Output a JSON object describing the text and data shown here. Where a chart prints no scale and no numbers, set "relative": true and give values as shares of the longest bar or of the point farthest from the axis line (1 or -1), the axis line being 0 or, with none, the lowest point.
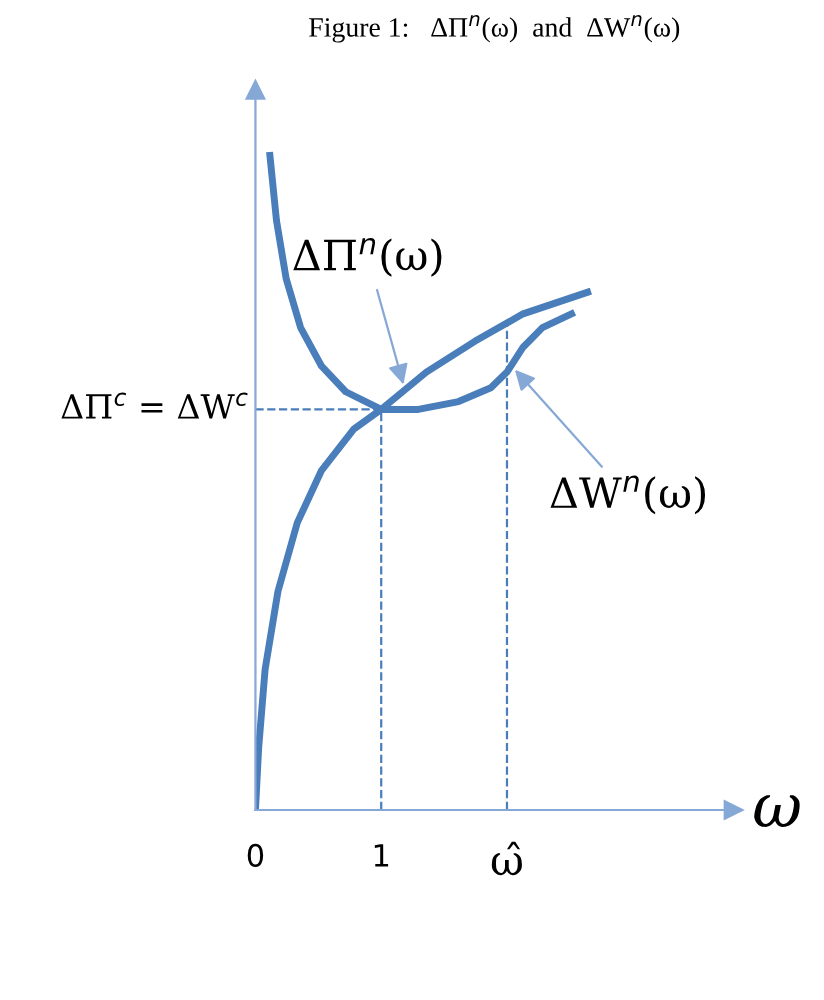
{
  "chart_data": {
    "type": "line",
    "title": "Figure 1:   ΔΠ$^{n}$(ω)  and  ΔW$^{n}$(ω)",
    "xlabel": "ω",
    "relative": true,
    "x": [
      0,
      0.026,
      0.077,
      0.179,
      0.333,
      0.526,
      0.782,
      1.0,
      1.359,
      1.744,
      2.128,
      2.641
    ],
    "xlim": [
      0,
      3.8
    ],
    "xticks": [
      0,
      1,
      {
        "value": 2.0,
        "label": "ω̂"
      }
    ],
    "series": [
      {
        "name": "ΔΠ$^{n}$(ω)",
        "color": "#4a7ebb",
        "values": [
          0,
          0.096,
          0.215,
          0.334,
          0.439,
          0.519,
          0.582,
          0.612,
          0.669,
          0.716,
          0.758,
          0.791
        ]
      },
      {
        "name": "ΔW$^{n}$(ω)",
        "color": "#4a7ebb",
        "x": [
          0.115,
          0.167,
          0.244,
          0.359,
          0.526,
          0.718,
          1.0,
          1.295,
          1.615,
          1.872,
          2.0,
          2.128,
          2.282,
          2.513
        ],
        "values": [
          1.0,
          0.901,
          0.812,
          0.737,
          0.678,
          0.639,
          0.612,
          0.612,
          0.624,
          0.645,
          0.669,
          0.707,
          0.737,
          0.758
        ]
      }
    ],
    "ref_lines": [
      {
        "axis": "x",
        "value": 1,
        "line_style": "dashed",
        "color": "#4a7ebb"
      },
      {
        "axis": "x",
        "value": 2.0,
        "line_style": "dashed",
        "color": "#4a7ebb"
      },
      {
        "axis": "y",
        "value": 0.612,
        "label": "ΔΠ$^{c}$ = ΔW$^{c}$",
        "line_style": "dashed",
        "color": "#4a7ebb"
      }
    ],
    "grid": false,
    "marker": "none",
    "line_style": "solid"
  }
}
